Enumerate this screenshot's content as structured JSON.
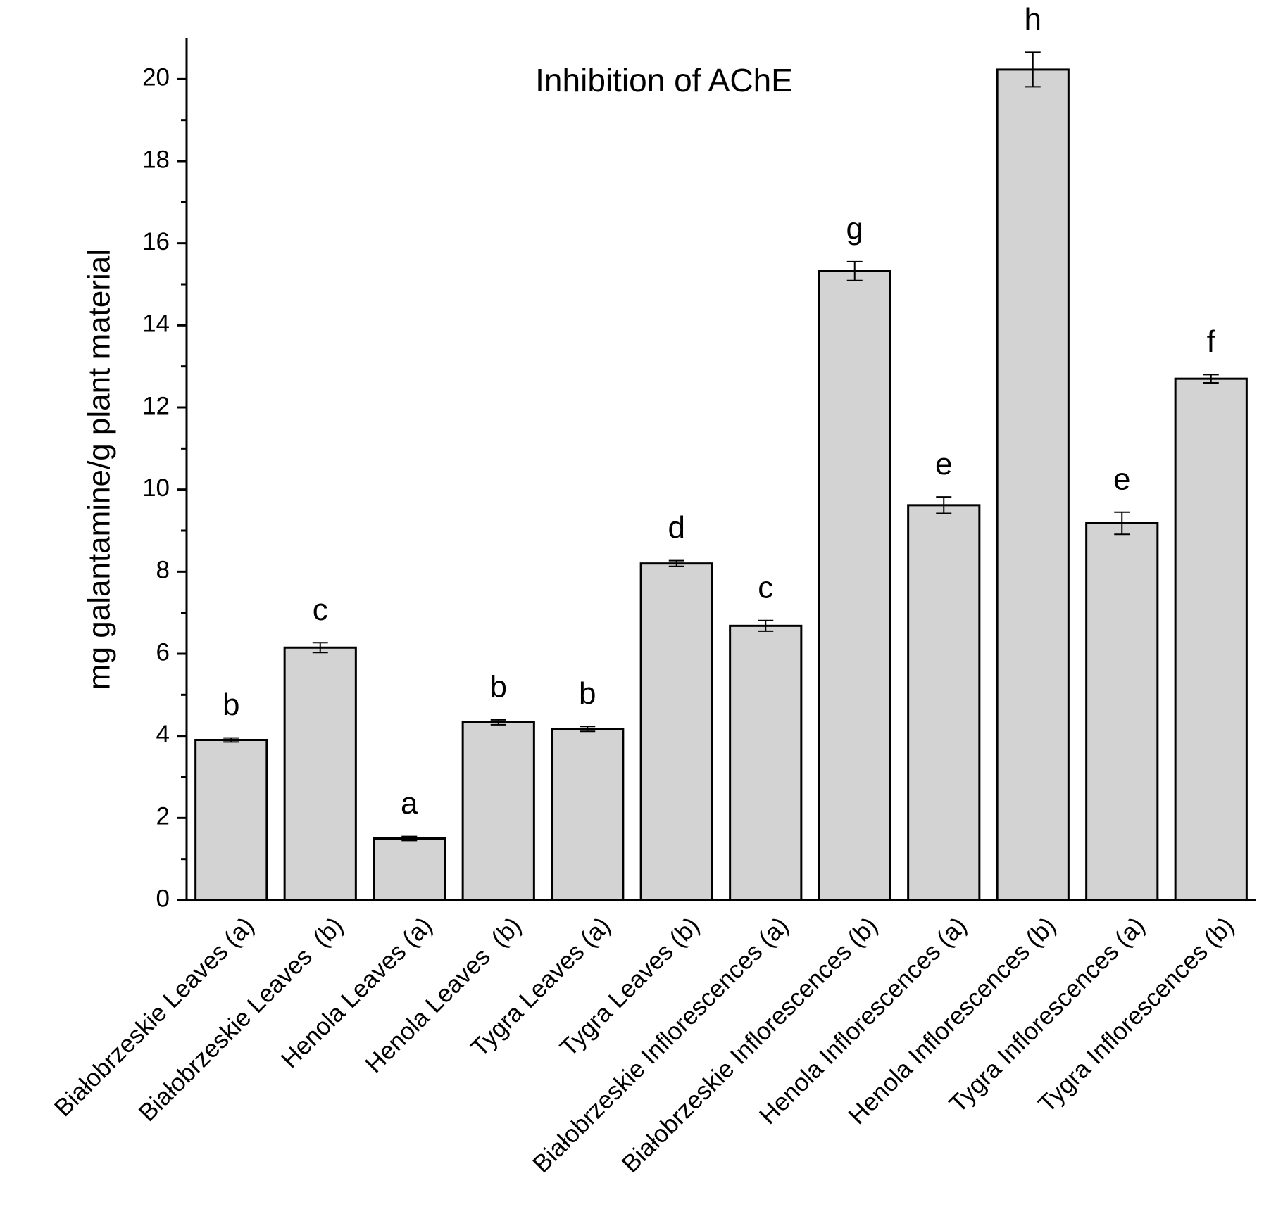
{
  "chart_data": {
    "type": "bar",
    "title": "Inhibition of AChE",
    "y_label": "mg galantamine/g plant material",
    "categories": [
      "Białobrzeskie Leaves (a)",
      "Białobrzeskie Leaves  (b)",
      "Henola Leaves (a)",
      "Henola Leaves  (b)",
      "Tygra Leaves (a)",
      "Tygra Leaves (b)",
      "Białobrzeskie Inflorescences (a)",
      "Białobrzeskie Inflorescences (b)",
      "Henola Inflorescences (a)",
      "Henola Inflorescences (b)",
      "Tygra Inflorescences (a)",
      "Tygra Inflorescences (b)"
    ],
    "values": [
      3.9,
      6.15,
      1.5,
      4.33,
      4.17,
      8.2,
      6.68,
      15.32,
      9.62,
      20.23,
      9.18,
      12.7
    ],
    "errors": [
      0.05,
      0.12,
      0.05,
      0.06,
      0.06,
      0.07,
      0.13,
      0.23,
      0.2,
      0.42,
      0.27,
      0.1
    ],
    "letters": [
      "b",
      "c",
      "a",
      "b",
      "b",
      "d",
      "c",
      "g",
      "e",
      "h",
      "e",
      "f"
    ],
    "color": "#d3d3d3",
    "ylim": [
      0,
      21
    ],
    "yticks": [
      0,
      2,
      4,
      6,
      8,
      10,
      12,
      14,
      16,
      18,
      20
    ]
  }
}
